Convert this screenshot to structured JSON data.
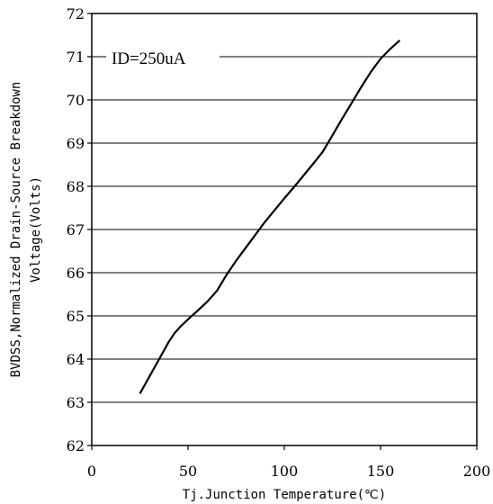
{
  "chart_data": {
    "type": "line",
    "title": "",
    "xlabel": "Tj.Junction Temperature(℃)",
    "ylabel_line1": "BVDSS,Normalized Drain-Source Breakdown",
    "ylabel_line2": "Voltage(Volts)",
    "xlim": [
      0,
      200
    ],
    "ylim": [
      62,
      72
    ],
    "x_ticks": [
      0,
      50,
      100,
      150,
      200
    ],
    "y_ticks": [
      62,
      63,
      64,
      65,
      66,
      67,
      68,
      69,
      70,
      71,
      72
    ],
    "x_tick_labels": [
      "0",
      "50",
      "100",
      "150",
      "200"
    ],
    "y_tick_labels": [
      "62",
      "63",
      "64",
      "65",
      "66",
      "67",
      "68",
      "69",
      "70",
      "71",
      "72"
    ],
    "grid": {
      "horizontal": true,
      "vertical": false
    },
    "annotation": "ID=250uA",
    "series": [
      {
        "x": [
          25,
          30,
          35,
          40,
          43,
          46,
          50,
          55,
          60,
          65,
          70,
          75,
          80,
          85,
          90,
          95,
          100,
          105,
          110,
          115,
          120,
          125,
          130,
          135,
          140,
          145,
          150,
          155,
          160
        ],
        "y": [
          63.2,
          63.6,
          64.0,
          64.4,
          64.6,
          64.75,
          64.92,
          65.12,
          65.33,
          65.58,
          65.95,
          66.28,
          66.58,
          66.88,
          67.18,
          67.45,
          67.72,
          67.98,
          68.25,
          68.52,
          68.8,
          69.18,
          69.56,
          69.93,
          70.3,
          70.65,
          70.95,
          71.18,
          71.38
        ]
      }
    ]
  }
}
